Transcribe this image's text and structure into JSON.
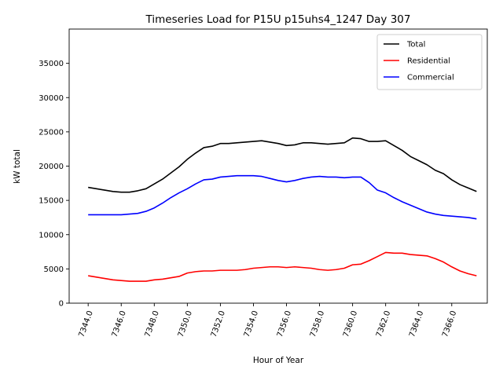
{
  "chart_data": {
    "type": "line",
    "title": "Timeseries Load for P15U p15uhs4_1247  Day 307",
    "xlabel": "Hour of Year",
    "ylabel": "kW total",
    "xlim": [
      7342.85,
      7368.15
    ],
    "ylim": [
      0,
      40000
    ],
    "xticks": [
      7344,
      7346,
      7348,
      7350,
      7352,
      7354,
      7356,
      7358,
      7360,
      7362,
      7364,
      7366
    ],
    "xtick_labels": [
      "7344.0",
      "7346.0",
      "7348.0",
      "7350.0",
      "7352.0",
      "7354.0",
      "7356.0",
      "7358.0",
      "7360.0",
      "7362.0",
      "7364.0",
      "7366.0"
    ],
    "yticks": [
      0,
      5000,
      10000,
      15000,
      20000,
      25000,
      30000,
      35000
    ],
    "ytick_labels": [
      "0",
      "5000",
      "10000",
      "15000",
      "20000",
      "25000",
      "30000",
      "35000"
    ],
    "legend_position": "top-right",
    "x": [
      7344.0,
      7344.5,
      7345.0,
      7345.5,
      7346.0,
      7346.5,
      7347.0,
      7347.5,
      7348.0,
      7348.5,
      7349.0,
      7349.5,
      7350.0,
      7350.5,
      7351.0,
      7351.5,
      7352.0,
      7352.5,
      7353.0,
      7353.5,
      7354.0,
      7354.5,
      7355.0,
      7355.5,
      7356.0,
      7356.5,
      7357.0,
      7357.5,
      7358.0,
      7358.5,
      7359.0,
      7359.5,
      7360.0,
      7360.5,
      7361.0,
      7361.5,
      7362.0,
      7362.5,
      7363.0,
      7363.5,
      7364.0,
      7364.5,
      7365.0,
      7365.5,
      7366.0,
      7366.5,
      7367.0,
      7367.5
    ],
    "series": [
      {
        "name": "Total",
        "color": "#000000",
        "values": [
          16900,
          16700,
          16500,
          16300,
          16200,
          16200,
          16400,
          16700,
          17400,
          18100,
          19000,
          19900,
          21000,
          21900,
          22700,
          22900,
          23300,
          23300,
          23400,
          23500,
          23600,
          23700,
          23500,
          23300,
          23000,
          23100,
          23400,
          23400,
          23300,
          23200,
          23300,
          23400,
          24100,
          24000,
          23600,
          23600,
          23700,
          23000,
          22300,
          21400,
          20800,
          20200,
          19400,
          18900,
          18000,
          17300,
          16800,
          16300
        ]
      },
      {
        "name": "Residential",
        "color": "#ff0000",
        "values": [
          4000,
          3800,
          3600,
          3400,
          3300,
          3200,
          3200,
          3200,
          3400,
          3500,
          3700,
          3900,
          4400,
          4600,
          4700,
          4700,
          4800,
          4800,
          4800,
          4900,
          5100,
          5200,
          5300,
          5300,
          5200,
          5300,
          5200,
          5100,
          4900,
          4800,
          4900,
          5100,
          5600,
          5700,
          6200,
          6800,
          7400,
          7300,
          7300,
          7100,
          7000,
          6900,
          6500,
          6000,
          5300,
          4700,
          4300,
          4000
        ]
      },
      {
        "name": "Commercial",
        "color": "#0000ff",
        "values": [
          12900,
          12900,
          12900,
          12900,
          12900,
          13000,
          13100,
          13400,
          13900,
          14600,
          15400,
          16100,
          16700,
          17400,
          18000,
          18100,
          18400,
          18500,
          18600,
          18600,
          18600,
          18500,
          18200,
          17900,
          17700,
          17900,
          18200,
          18400,
          18500,
          18400,
          18400,
          18300,
          18400,
          18400,
          17600,
          16500,
          16100,
          15400,
          14800,
          14300,
          13800,
          13300,
          13000,
          12800,
          12700,
          12600,
          12500,
          12300
        ]
      }
    ]
  }
}
